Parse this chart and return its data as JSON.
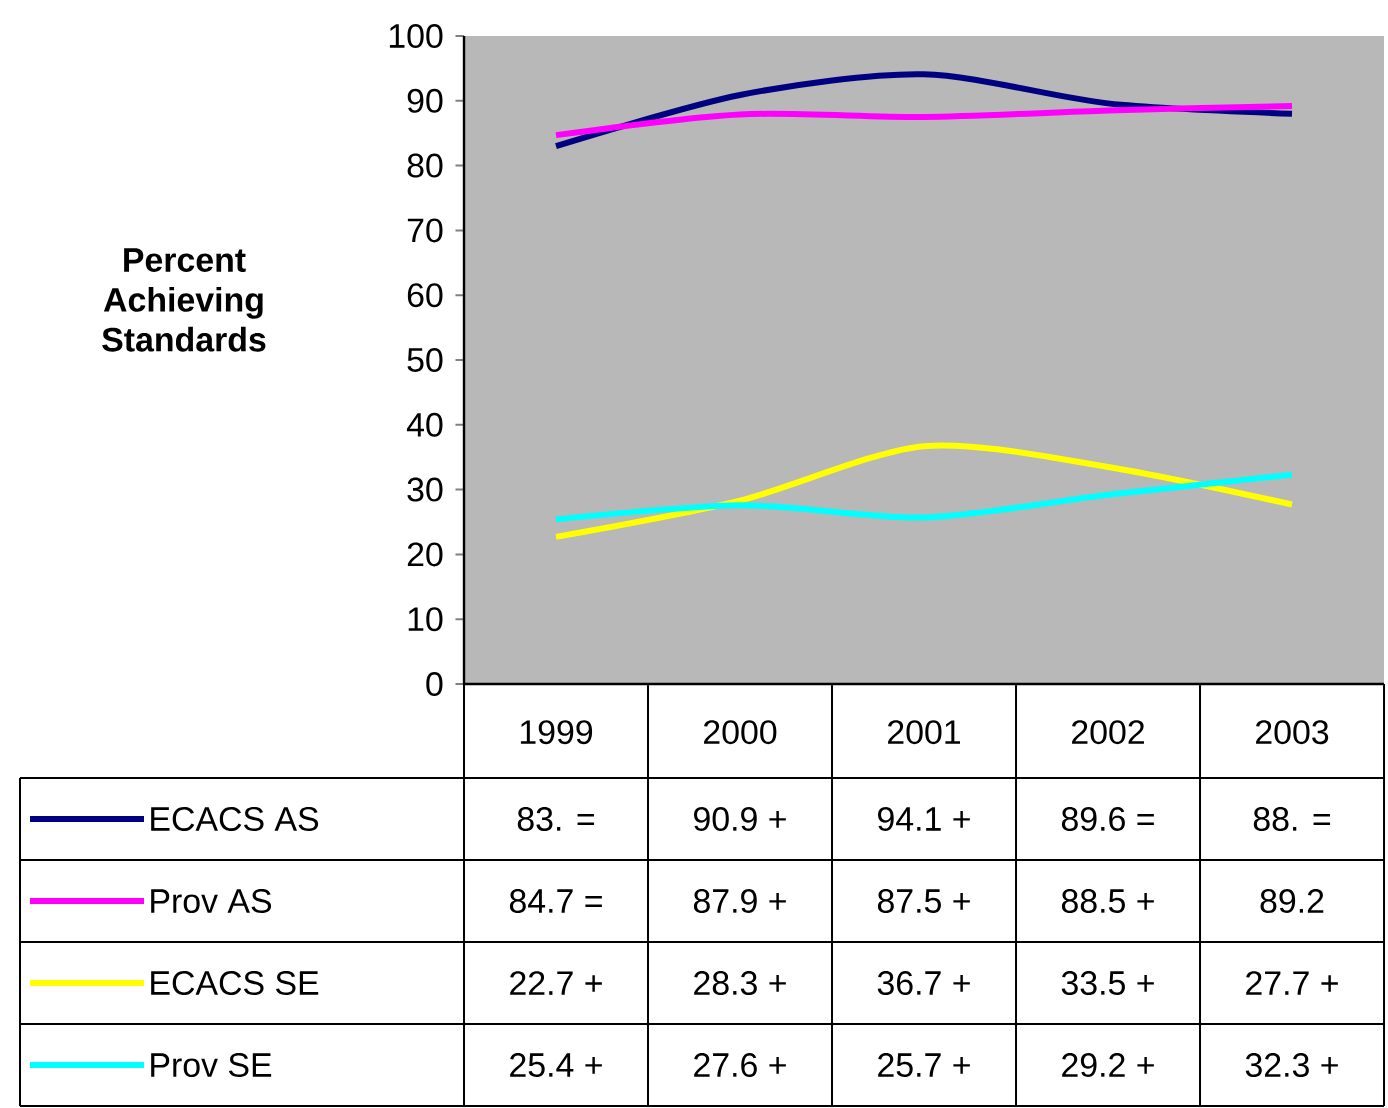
{
  "chart_data": {
    "type": "line",
    "ylabel": "Percent Achieving Standards",
    "categories": [
      "1999",
      "2000",
      "2001",
      "2002",
      "2003"
    ],
    "ylim": [
      0,
      100
    ],
    "yticks": [
      0,
      10,
      20,
      30,
      40,
      50,
      60,
      70,
      80,
      90,
      100
    ],
    "grid": false,
    "legend": "bottom",
    "marker": "none",
    "line_style": "solid",
    "series": [
      {
        "name": "ECACS AS",
        "color": "#000080",
        "values": [
          83.0,
          90.9,
          94.1,
          89.6,
          88.0
        ],
        "value_labels": [
          "83. =",
          "90.9 +",
          "94.1 +",
          "89.6 =",
          "88. ="
        ]
      },
      {
        "name": "Prov AS",
        "color": "#ff00ff",
        "values": [
          84.7,
          87.9,
          87.5,
          88.5,
          89.2
        ],
        "value_labels": [
          "84.7 =",
          "87.9 +",
          "87.5 +",
          "88.5 +",
          "89.2"
        ]
      },
      {
        "name": "ECACS SE",
        "color": "#ffff00",
        "values": [
          22.7,
          28.3,
          36.7,
          33.5,
          27.7
        ],
        "value_labels": [
          "22.7 +",
          "28.3 +",
          "36.7 +",
          "33.5 +",
          "27.7 +"
        ]
      },
      {
        "name": "Prov SE",
        "color": "#00ffff",
        "values": [
          25.4,
          27.6,
          25.7,
          29.2,
          32.3
        ],
        "value_labels": [
          "25.4 +",
          "27.6 +",
          "25.7 +",
          "29.2 +",
          "32.3 +"
        ]
      }
    ]
  }
}
